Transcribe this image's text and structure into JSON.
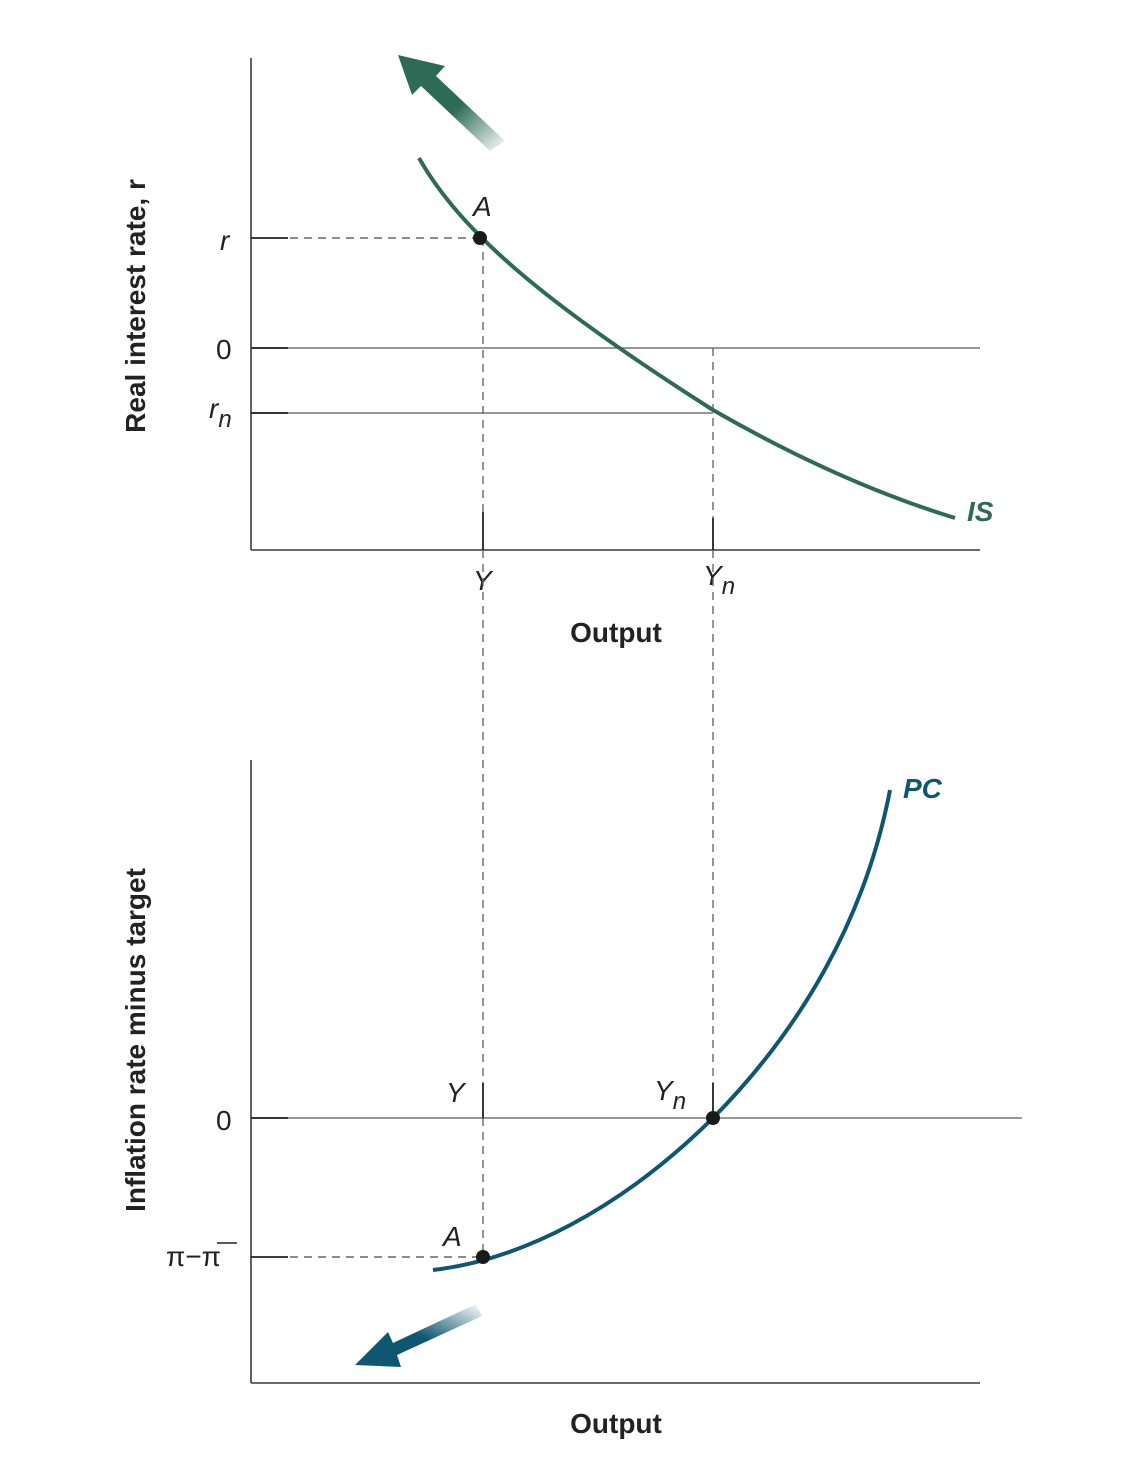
{
  "top_panel": {
    "y_axis_title": "Real interest rate, r",
    "x_axis_title": "Output",
    "y_ticks": {
      "r": "r",
      "zero": "0",
      "rn_base": "r",
      "rn_sub": "n"
    },
    "x_ticks": {
      "y": "Y",
      "yn_base": "Y",
      "yn_sub": "n"
    },
    "point_label": "A",
    "curve_label": "IS",
    "curve_color": "#2e6b57"
  },
  "bottom_panel": {
    "y_axis_title": "Inflation rate minus target",
    "x_axis_title": "Output",
    "y_ticks": {
      "zero": "0",
      "gap": "π−π"
    },
    "x_ticks": {
      "y": "Y",
      "yn_base": "Y",
      "yn_sub": "n"
    },
    "point_label": "A",
    "curve_label": "PC",
    "curve_color": "#0f5670"
  }
}
